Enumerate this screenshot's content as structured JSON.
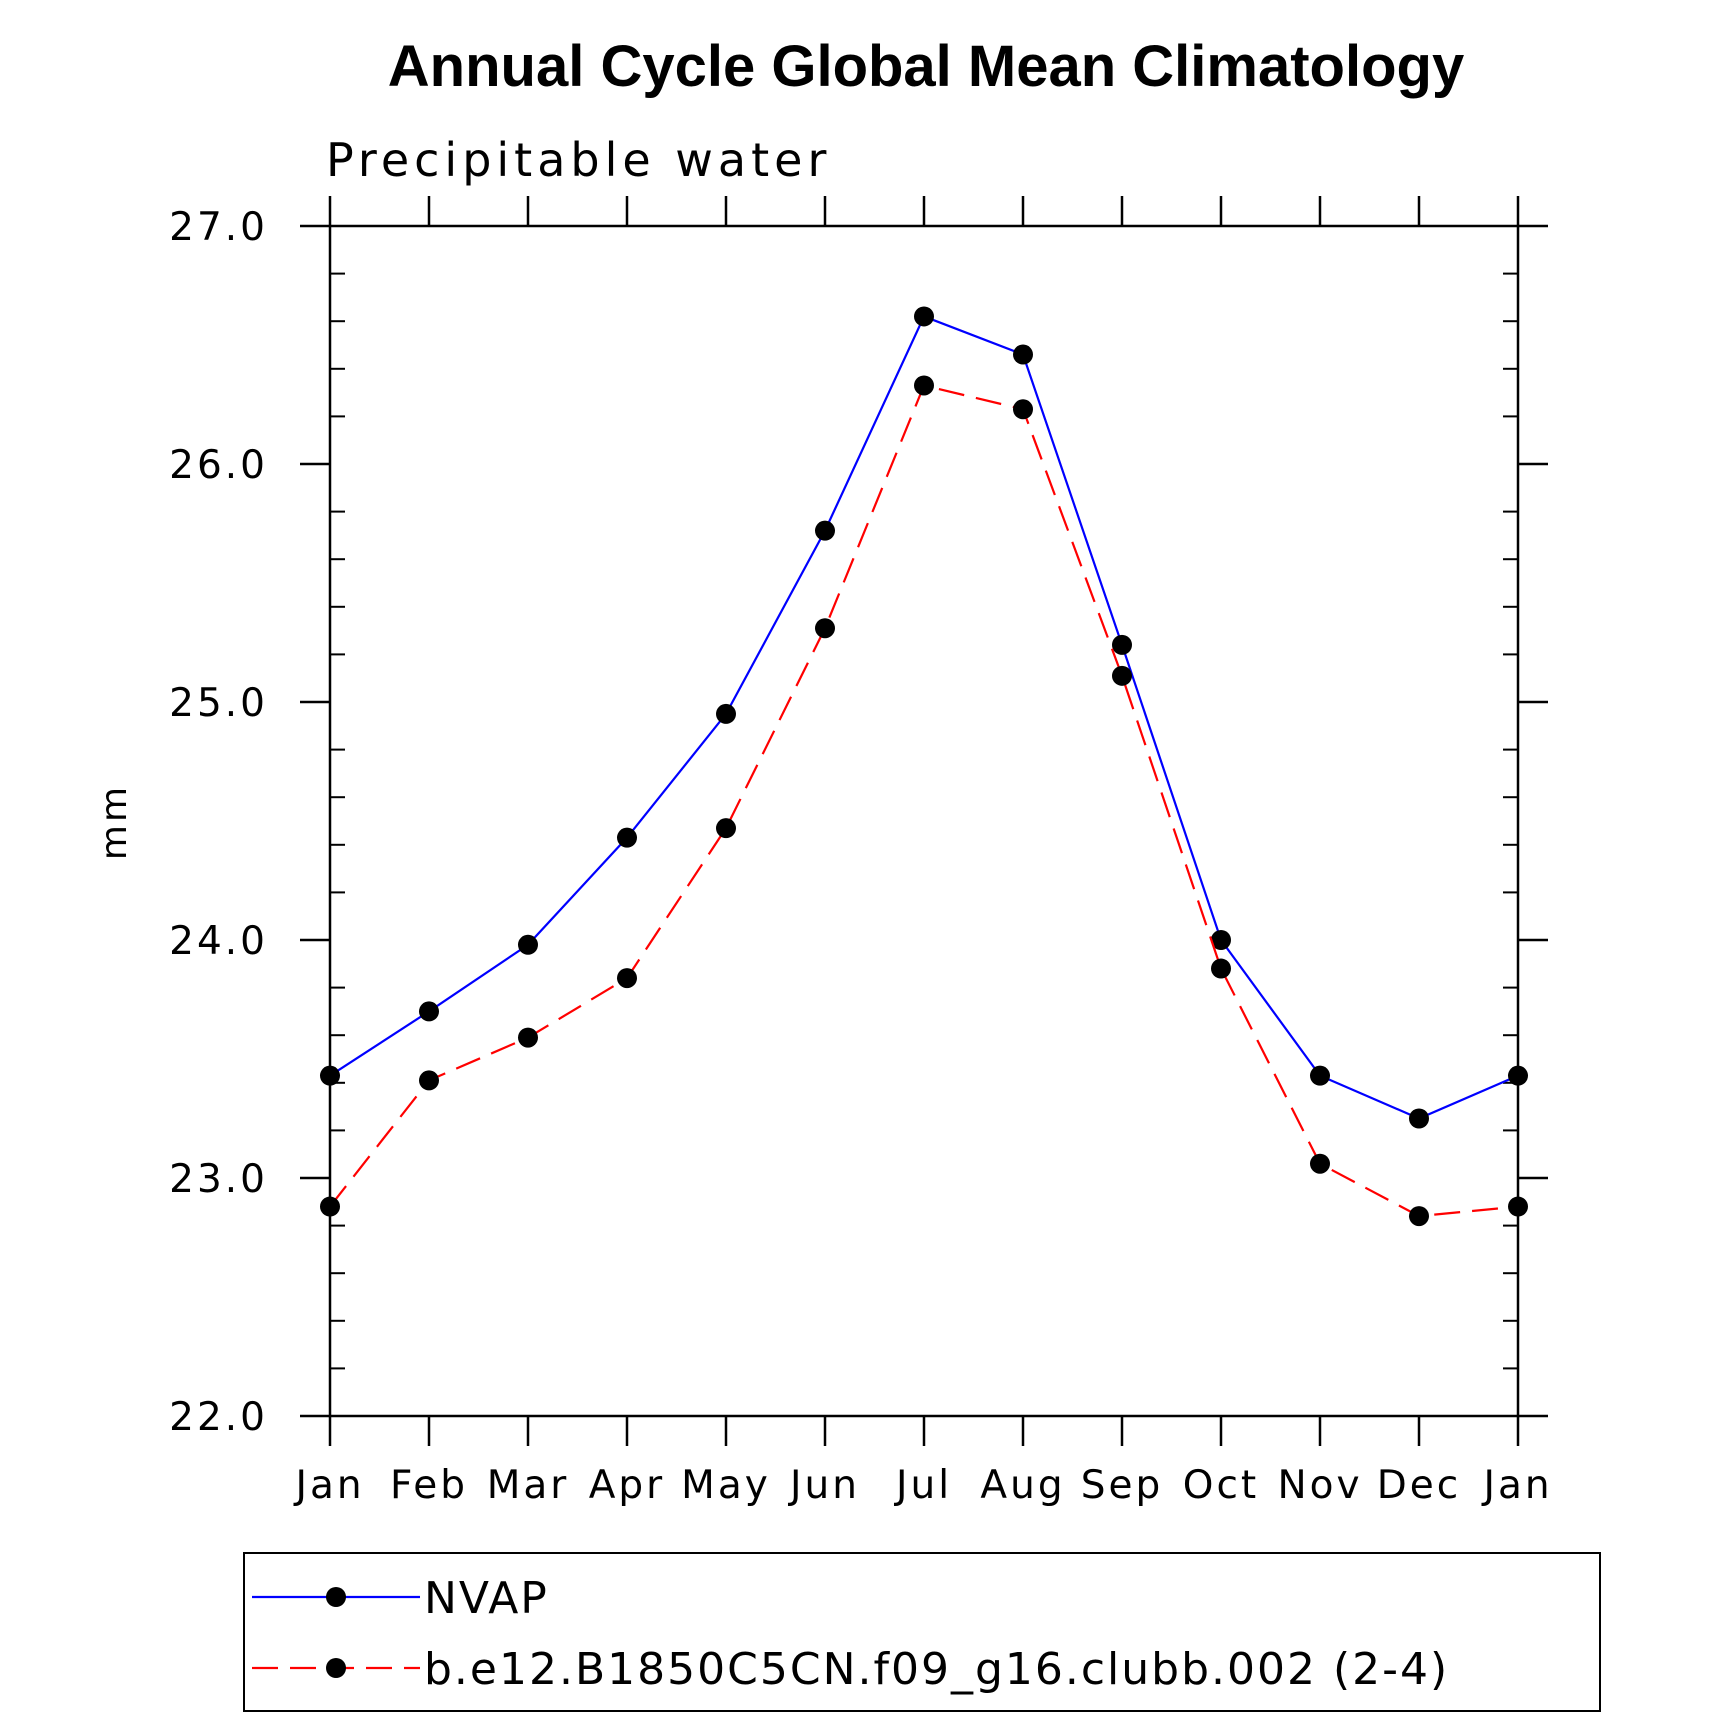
{
  "chart_data": {
    "type": "line",
    "title": "Annual Cycle Global Mean Climatology",
    "subtitle": "Precipitable water",
    "xlabel": "",
    "ylabel": "mm",
    "categories": [
      "Jan",
      "Feb",
      "Mar",
      "Apr",
      "May",
      "Jun",
      "Jul",
      "Aug",
      "Sep",
      "Oct",
      "Nov",
      "Dec",
      "Jan"
    ],
    "ylim": [
      22.0,
      27.0
    ],
    "yticks": [
      "22.0",
      "23.0",
      "24.0",
      "25.0",
      "26.0",
      "27.0"
    ],
    "yminor_step": 0.2,
    "grid": false,
    "legend_position": "bottom",
    "series": [
      {
        "name": "NVAP",
        "color": "#0000ff",
        "dash": "solid",
        "marker": "filled-circle",
        "values": [
          23.43,
          23.7,
          23.98,
          24.43,
          24.95,
          25.72,
          26.62,
          26.46,
          25.24,
          24.0,
          23.43,
          23.25,
          23.43
        ]
      },
      {
        "name": "b.e12.B1850C5CN.f09_g16.clubb.002 (2-4)",
        "color": "#ff0000",
        "dash": "dashed",
        "marker": "filled-circle",
        "values": [
          22.88,
          23.41,
          23.59,
          23.84,
          24.47,
          25.31,
          26.33,
          26.23,
          25.11,
          23.88,
          23.06,
          22.84,
          22.88
        ]
      }
    ]
  }
}
